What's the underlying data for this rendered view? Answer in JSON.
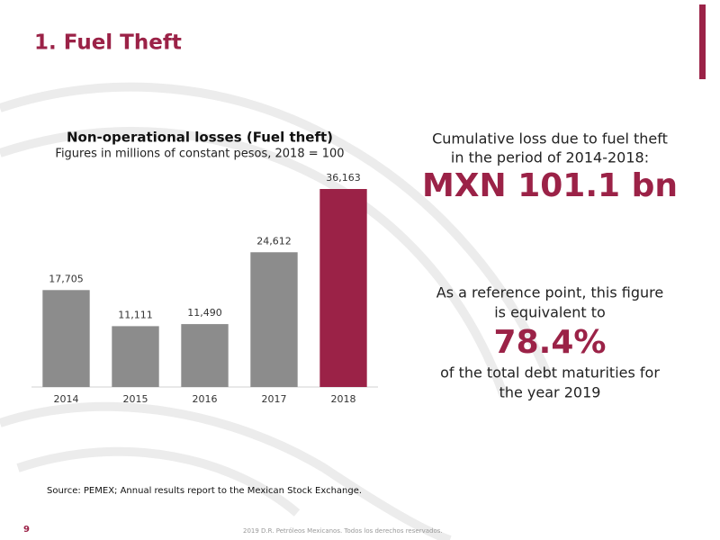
{
  "slide": {
    "title": "1. Fuel Theft",
    "callout_top": [
      "Cumulative loss due to fuel theft",
      "in the period of 2014-2018:"
    ],
    "callout_top_figure": "MXN 101.1 bn",
    "callout_bottom_intro": [
      "As a reference point, this figure",
      "is equivalent to"
    ],
    "callout_bottom_figure": "78.4%",
    "callout_bottom_outro": [
      "of the total debt maturities for",
      "the year 2019"
    ],
    "source": "Source: PEMEX; Annual results report to the Mexican Stock Exchange.",
    "page_number": "9",
    "footer": "2019 D.R. Petróleos Mexicanos. Todos los derechos reservados."
  },
  "chart_data": {
    "type": "bar",
    "title": "Non-operational losses (Fuel theft)",
    "subtitle": "Figures in millions of constant pesos, 2018 = 100",
    "categories": [
      "2014",
      "2015",
      "2016",
      "2017",
      "2018"
    ],
    "values": [
      17705,
      11111,
      11490,
      24612,
      36163
    ],
    "value_labels": [
      "17,705",
      "11,111",
      "11,490",
      "24,612",
      "36,163"
    ],
    "colors": [
      "#8c8c8c",
      "#8c8c8c",
      "#8c8c8c",
      "#8c8c8c",
      "#9b2247"
    ]
  }
}
